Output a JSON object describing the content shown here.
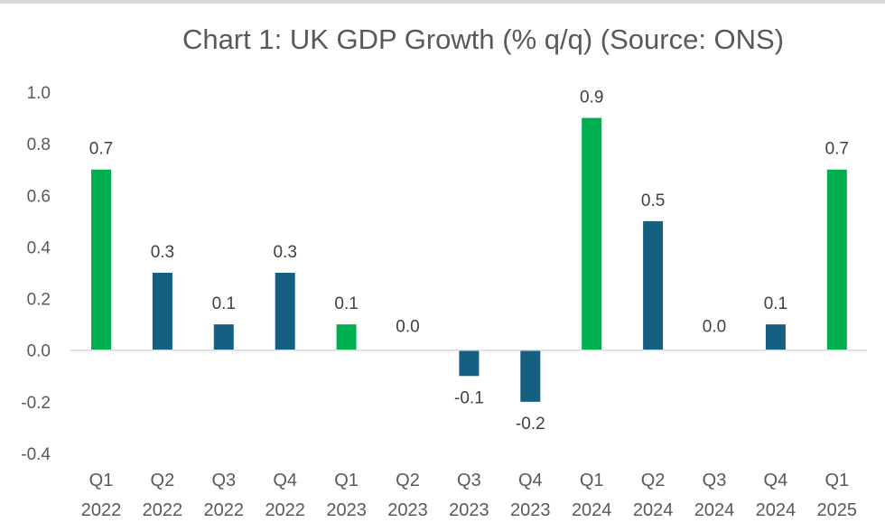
{
  "chart_data": {
    "type": "bar",
    "title": "Chart 1: UK GDP Growth (% q/q) (Source: ONS)",
    "xlabel": "",
    "ylabel": "",
    "ylim": [
      -0.4,
      1.0
    ],
    "yticks": [
      "1.0",
      "0.8",
      "0.6",
      "0.4",
      "0.2",
      "0.0",
      "-0.2",
      "-0.4"
    ],
    "grid": false,
    "legend": "none",
    "categories": [
      [
        "Q1",
        "2022"
      ],
      [
        "Q2",
        "2022"
      ],
      [
        "Q3",
        "2022"
      ],
      [
        "Q4",
        "2022"
      ],
      [
        "Q1",
        "2023"
      ],
      [
        "Q2",
        "2023"
      ],
      [
        "Q3",
        "2023"
      ],
      [
        "Q4",
        "2023"
      ],
      [
        "Q1",
        "2024"
      ],
      [
        "Q2",
        "2024"
      ],
      [
        "Q3",
        "2024"
      ],
      [
        "Q4",
        "2024"
      ],
      [
        "Q1",
        "2025"
      ]
    ],
    "values": [
      0.7,
      0.3,
      0.1,
      0.3,
      0.1,
      0.0,
      -0.1,
      -0.2,
      0.9,
      0.5,
      0.0,
      0.1,
      0.7
    ],
    "data_labels": [
      "0.7",
      "0.3",
      "0.1",
      "0.3",
      "0.1",
      "0.0",
      "-0.1",
      "-0.2",
      "0.9",
      "0.5",
      "0.0",
      "0.1",
      "0.7"
    ],
    "highlight": [
      true,
      false,
      false,
      false,
      true,
      false,
      false,
      false,
      true,
      false,
      false,
      false,
      true
    ],
    "colors": {
      "highlight": "#00b050",
      "default": "#156082",
      "axis": "#d9d9d9",
      "text": "#595959"
    }
  }
}
